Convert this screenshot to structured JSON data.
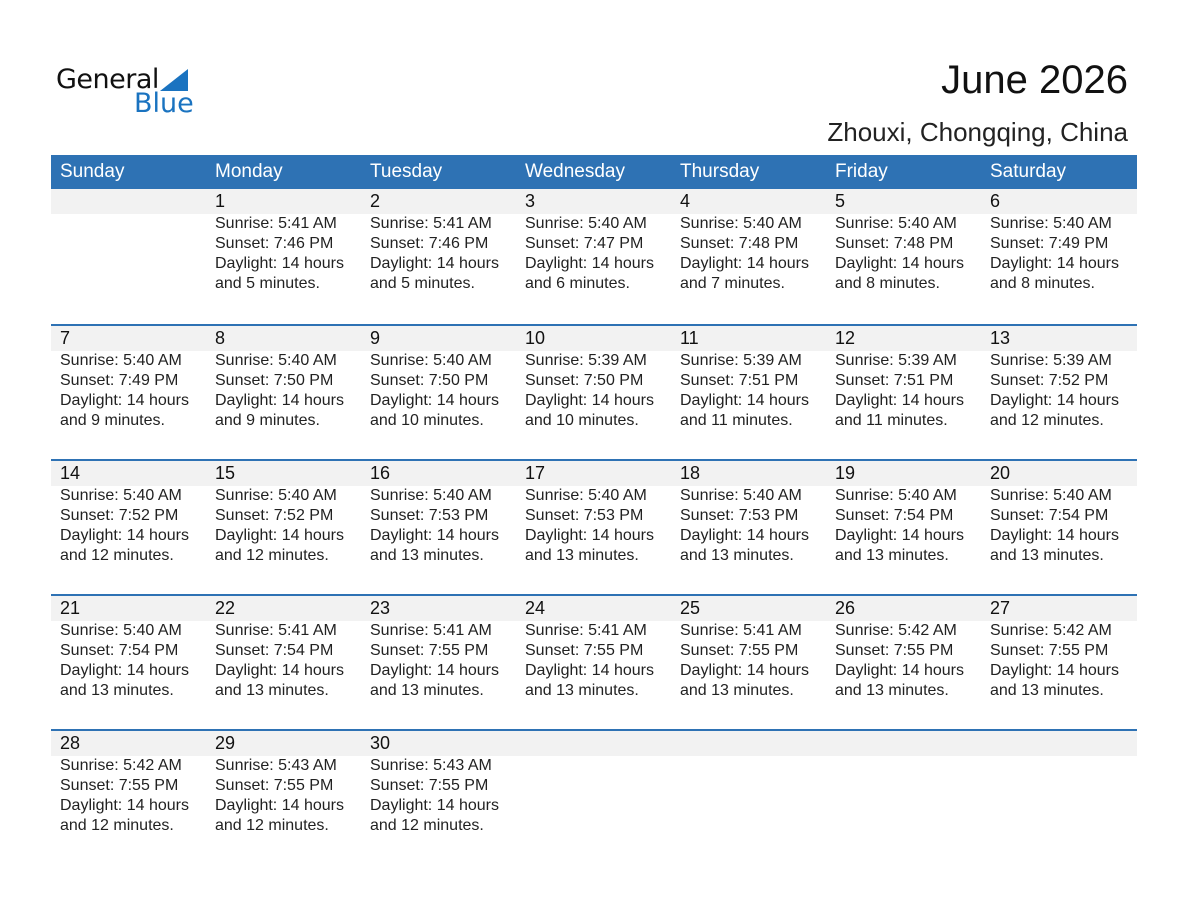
{
  "logo": {
    "general": "General",
    "blue": "Blue",
    "accent": "#1a73c0"
  },
  "header": {
    "title": "June 2026",
    "location": "Zhouxi, Chongqing, China"
  },
  "colors": {
    "header_bg": "#2e72b4",
    "band_bg": "#f2f2f2"
  },
  "weekdays": [
    "Sunday",
    "Monday",
    "Tuesday",
    "Wednesday",
    "Thursday",
    "Friday",
    "Saturday"
  ],
  "first_weekday_offset": 1,
  "days": [
    {
      "day": "1",
      "sunrise": "Sunrise: 5:41 AM",
      "sunset": "Sunset: 7:46 PM",
      "daylight": "Daylight: 14 hours",
      "minutes": "and 5 minutes."
    },
    {
      "day": "2",
      "sunrise": "Sunrise: 5:41 AM",
      "sunset": "Sunset: 7:46 PM",
      "daylight": "Daylight: 14 hours",
      "minutes": "and 5 minutes."
    },
    {
      "day": "3",
      "sunrise": "Sunrise: 5:40 AM",
      "sunset": "Sunset: 7:47 PM",
      "daylight": "Daylight: 14 hours",
      "minutes": "and 6 minutes."
    },
    {
      "day": "4",
      "sunrise": "Sunrise: 5:40 AM",
      "sunset": "Sunset: 7:48 PM",
      "daylight": "Daylight: 14 hours",
      "minutes": "and 7 minutes."
    },
    {
      "day": "5",
      "sunrise": "Sunrise: 5:40 AM",
      "sunset": "Sunset: 7:48 PM",
      "daylight": "Daylight: 14 hours",
      "minutes": "and 8 minutes."
    },
    {
      "day": "6",
      "sunrise": "Sunrise: 5:40 AM",
      "sunset": "Sunset: 7:49 PM",
      "daylight": "Daylight: 14 hours",
      "minutes": "and 8 minutes."
    },
    {
      "day": "7",
      "sunrise": "Sunrise: 5:40 AM",
      "sunset": "Sunset: 7:49 PM",
      "daylight": "Daylight: 14 hours",
      "minutes": "and 9 minutes."
    },
    {
      "day": "8",
      "sunrise": "Sunrise: 5:40 AM",
      "sunset": "Sunset: 7:50 PM",
      "daylight": "Daylight: 14 hours",
      "minutes": "and 9 minutes."
    },
    {
      "day": "9",
      "sunrise": "Sunrise: 5:40 AM",
      "sunset": "Sunset: 7:50 PM",
      "daylight": "Daylight: 14 hours",
      "minutes": "and 10 minutes."
    },
    {
      "day": "10",
      "sunrise": "Sunrise: 5:39 AM",
      "sunset": "Sunset: 7:50 PM",
      "daylight": "Daylight: 14 hours",
      "minutes": "and 10 minutes."
    },
    {
      "day": "11",
      "sunrise": "Sunrise: 5:39 AM",
      "sunset": "Sunset: 7:51 PM",
      "daylight": "Daylight: 14 hours",
      "minutes": "and 11 minutes."
    },
    {
      "day": "12",
      "sunrise": "Sunrise: 5:39 AM",
      "sunset": "Sunset: 7:51 PM",
      "daylight": "Daylight: 14 hours",
      "minutes": "and 11 minutes."
    },
    {
      "day": "13",
      "sunrise": "Sunrise: 5:39 AM",
      "sunset": "Sunset: 7:52 PM",
      "daylight": "Daylight: 14 hours",
      "minutes": "and 12 minutes."
    },
    {
      "day": "14",
      "sunrise": "Sunrise: 5:40 AM",
      "sunset": "Sunset: 7:52 PM",
      "daylight": "Daylight: 14 hours",
      "minutes": "and 12 minutes."
    },
    {
      "day": "15",
      "sunrise": "Sunrise: 5:40 AM",
      "sunset": "Sunset: 7:52 PM",
      "daylight": "Daylight: 14 hours",
      "minutes": "and 12 minutes."
    },
    {
      "day": "16",
      "sunrise": "Sunrise: 5:40 AM",
      "sunset": "Sunset: 7:53 PM",
      "daylight": "Daylight: 14 hours",
      "minutes": "and 13 minutes."
    },
    {
      "day": "17",
      "sunrise": "Sunrise: 5:40 AM",
      "sunset": "Sunset: 7:53 PM",
      "daylight": "Daylight: 14 hours",
      "minutes": "and 13 minutes."
    },
    {
      "day": "18",
      "sunrise": "Sunrise: 5:40 AM",
      "sunset": "Sunset: 7:53 PM",
      "daylight": "Daylight: 14 hours",
      "minutes": "and 13 minutes."
    },
    {
      "day": "19",
      "sunrise": "Sunrise: 5:40 AM",
      "sunset": "Sunset: 7:54 PM",
      "daylight": "Daylight: 14 hours",
      "minutes": "and 13 minutes."
    },
    {
      "day": "20",
      "sunrise": "Sunrise: 5:40 AM",
      "sunset": "Sunset: 7:54 PM",
      "daylight": "Daylight: 14 hours",
      "minutes": "and 13 minutes."
    },
    {
      "day": "21",
      "sunrise": "Sunrise: 5:40 AM",
      "sunset": "Sunset: 7:54 PM",
      "daylight": "Daylight: 14 hours",
      "minutes": "and 13 minutes."
    },
    {
      "day": "22",
      "sunrise": "Sunrise: 5:41 AM",
      "sunset": "Sunset: 7:54 PM",
      "daylight": "Daylight: 14 hours",
      "minutes": "and 13 minutes."
    },
    {
      "day": "23",
      "sunrise": "Sunrise: 5:41 AM",
      "sunset": "Sunset: 7:55 PM",
      "daylight": "Daylight: 14 hours",
      "minutes": "and 13 minutes."
    },
    {
      "day": "24",
      "sunrise": "Sunrise: 5:41 AM",
      "sunset": "Sunset: 7:55 PM",
      "daylight": "Daylight: 14 hours",
      "minutes": "and 13 minutes."
    },
    {
      "day": "25",
      "sunrise": "Sunrise: 5:41 AM",
      "sunset": "Sunset: 7:55 PM",
      "daylight": "Daylight: 14 hours",
      "minutes": "and 13 minutes."
    },
    {
      "day": "26",
      "sunrise": "Sunrise: 5:42 AM",
      "sunset": "Sunset: 7:55 PM",
      "daylight": "Daylight: 14 hours",
      "minutes": "and 13 minutes."
    },
    {
      "day": "27",
      "sunrise": "Sunrise: 5:42 AM",
      "sunset": "Sunset: 7:55 PM",
      "daylight": "Daylight: 14 hours",
      "minutes": "and 13 minutes."
    },
    {
      "day": "28",
      "sunrise": "Sunrise: 5:42 AM",
      "sunset": "Sunset: 7:55 PM",
      "daylight": "Daylight: 14 hours",
      "minutes": "and 12 minutes."
    },
    {
      "day": "29",
      "sunrise": "Sunrise: 5:43 AM",
      "sunset": "Sunset: 7:55 PM",
      "daylight": "Daylight: 14 hours",
      "minutes": "and 12 minutes."
    },
    {
      "day": "30",
      "sunrise": "Sunrise: 5:43 AM",
      "sunset": "Sunset: 7:55 PM",
      "daylight": "Daylight: 14 hours",
      "minutes": "and 12 minutes."
    }
  ]
}
